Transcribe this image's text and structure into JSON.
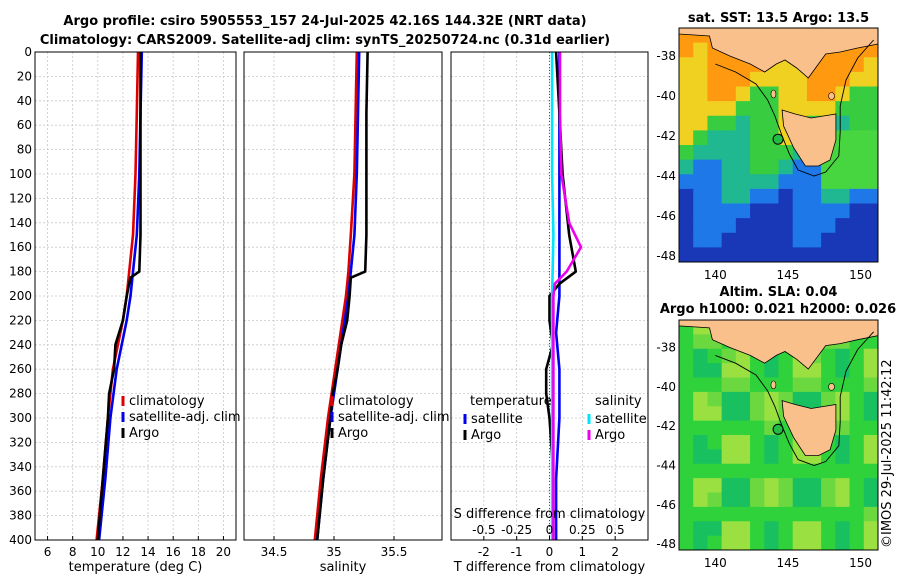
{
  "title_line1": "Argo profile: csiro 5905553_157 24-Jul-2025 42.16S 144.32E (NRT data)",
  "title_line2": "Climatology: CARS2009. Satellite-adj clim: synTS_20250724.nc (0.31d earlier)",
  "timestamp": "©IMOS 29-Jul-2025 11:42:12",
  "colors": {
    "climatology": "#dd0000",
    "satellite": "#0000ee",
    "argo": "#000000",
    "sat_salinity": "#00e5ff",
    "argo_salinity": "#ee00ee"
  },
  "chart_data": [
    {
      "id": "temperature",
      "type": "line",
      "xlabel": "temperature (deg C)",
      "ylabel": "",
      "xlim": [
        5,
        21
      ],
      "ylim": [
        0,
        400
      ],
      "xticks": [
        6,
        8,
        10,
        12,
        14,
        16,
        18,
        20
      ],
      "xtick_labels": [
        "6",
        "8",
        "10",
        "12",
        "14",
        "16",
        "18",
        "20"
      ],
      "yticks": [
        0,
        20,
        40,
        60,
        80,
        100,
        120,
        140,
        160,
        180,
        200,
        220,
        240,
        260,
        280,
        300,
        320,
        340,
        360,
        380,
        400
      ],
      "ytick_labels": [
        "0",
        "20",
        "40",
        "60",
        "80",
        "100",
        "120",
        "140",
        "160",
        "180",
        "200",
        "220",
        "240",
        "260",
        "280",
        "300",
        "320",
        "340",
        "360",
        "380",
        "400"
      ],
      "legend": {
        "entries": [
          "climatology",
          "satellite-adj. clim",
          "Argo"
        ],
        "position": "lower-right"
      },
      "series": [
        {
          "name": "climatology",
          "color": "#dd0000",
          "depth": [
            0,
            50,
            100,
            150,
            180,
            200,
            220,
            260,
            300,
            350,
            400
          ],
          "values": [
            13.2,
            13.1,
            13.0,
            12.8,
            12.5,
            12.3,
            12.0,
            11.2,
            10.8,
            10.4,
            9.9
          ]
        },
        {
          "name": "satellite-adj. clim",
          "color": "#0000ee",
          "depth": [
            0,
            50,
            100,
            150,
            180,
            200,
            220,
            260,
            300,
            350,
            400
          ],
          "values": [
            13.5,
            13.4,
            13.3,
            13.1,
            12.8,
            12.6,
            12.3,
            11.5,
            11.0,
            10.6,
            10.1
          ]
        },
        {
          "name": "Argo",
          "color": "#000000",
          "depth": [
            0,
            50,
            100,
            150,
            180,
            185,
            200,
            220,
            240,
            260,
            280,
            300,
            350,
            400
          ],
          "values": [
            13.4,
            13.4,
            13.4,
            13.4,
            13.3,
            12.6,
            12.3,
            12.0,
            11.4,
            11.3,
            10.9,
            10.8,
            10.4,
            10.0
          ]
        }
      ]
    },
    {
      "id": "salinity",
      "type": "line",
      "xlabel": "salinity",
      "ylabel": "",
      "xlim": [
        34.25,
        35.9
      ],
      "ylim": [
        0,
        400
      ],
      "xticks": [
        34.5,
        35,
        35.5
      ],
      "xtick_labels": [
        "34.5",
        "35",
        "35.5"
      ],
      "yticks": [
        0,
        20,
        40,
        60,
        80,
        100,
        120,
        140,
        160,
        180,
        200,
        220,
        240,
        260,
        280,
        300,
        320,
        340,
        360,
        380,
        400
      ],
      "legend": {
        "entries": [
          "climatology",
          "satellite-adj. clim",
          "Argo"
        ],
        "position": "lower-right"
      },
      "series": [
        {
          "name": "climatology",
          "color": "#dd0000",
          "depth": [
            0,
            50,
            100,
            150,
            180,
            200,
            220,
            260,
            300,
            350,
            400
          ],
          "values": [
            35.19,
            35.18,
            35.17,
            35.14,
            35.12,
            35.1,
            35.07,
            35.01,
            34.95,
            34.89,
            34.84
          ]
        },
        {
          "name": "satellite-adj. clim",
          "color": "#0000ee",
          "depth": [
            0,
            50,
            100,
            150,
            180,
            200,
            220,
            260,
            300,
            350,
            400
          ],
          "values": [
            35.21,
            35.2,
            35.19,
            35.17,
            35.14,
            35.12,
            35.09,
            35.03,
            34.97,
            34.91,
            34.86
          ]
        },
        {
          "name": "Argo",
          "color": "#000000",
          "depth": [
            0,
            50,
            100,
            150,
            180,
            185,
            200,
            220,
            240,
            260,
            280,
            300,
            350,
            400
          ],
          "values": [
            35.28,
            35.27,
            35.27,
            35.27,
            35.26,
            35.14,
            35.13,
            35.11,
            35.06,
            35.03,
            34.99,
            34.97,
            34.91,
            34.86
          ]
        }
      ]
    },
    {
      "id": "difference",
      "type": "line",
      "xlabel": "T difference from climatology",
      "top_axis_label": "S difference from climatology",
      "xlim": [
        -3,
        3
      ],
      "ylim": [
        0,
        400
      ],
      "xticks": [
        -2,
        -1,
        0,
        1,
        2
      ],
      "xtick_labels": [
        "-2",
        "-1",
        "0",
        "1",
        "2"
      ],
      "sticks": [
        -0.5,
        -0.25,
        0,
        0.25,
        0.5
      ],
      "stick_labels": [
        "-0.5",
        "-0.25",
        "0",
        "0.25",
        "0.5"
      ],
      "yticks": [
        0,
        20,
        40,
        60,
        80,
        100,
        120,
        140,
        160,
        180,
        200,
        220,
        240,
        260,
        280,
        300,
        320,
        340,
        360,
        380,
        400
      ],
      "legend_left": {
        "title": "temperature",
        "entries": [
          "satellite",
          "Argo"
        ]
      },
      "legend_right": {
        "title": "salinity",
        "entries": [
          "satellite",
          "Argo"
        ]
      },
      "series": [
        {
          "name": "T satellite",
          "color": "#0000ee",
          "depth": [
            0,
            50,
            100,
            150,
            200,
            230,
            260,
            300,
            350,
            400
          ],
          "values": [
            0.3,
            0.3,
            0.3,
            0.3,
            0.3,
            0.2,
            0.3,
            0.3,
            0.2,
            0.2
          ]
        },
        {
          "name": "T Argo",
          "color": "#000000",
          "depth": [
            0,
            50,
            100,
            150,
            180,
            190,
            200,
            220,
            240,
            260,
            280,
            300,
            340,
            400
          ],
          "values": [
            0.2,
            0.3,
            0.4,
            0.6,
            0.8,
            0.3,
            0.0,
            0.0,
            0.1,
            -0.1,
            -0.1,
            0.0,
            0.1,
            0.1
          ]
        },
        {
          "name": "S satellite",
          "color": "#00e5ff",
          "depth": [
            0,
            50,
            100,
            150,
            200,
            250,
            300,
            350,
            400
          ],
          "values": [
            0.02,
            0.02,
            0.02,
            0.03,
            0.02,
            0.02,
            0.02,
            0.02,
            0.02
          ]
        },
        {
          "name": "S Argo",
          "color": "#ee00ee",
          "depth": [
            0,
            50,
            100,
            140,
            160,
            180,
            190,
            200,
            250,
            300,
            400
          ],
          "values": [
            0.08,
            0.08,
            0.09,
            0.15,
            0.24,
            0.13,
            0.04,
            0.03,
            0.03,
            0.03,
            0.03
          ]
        }
      ]
    },
    {
      "id": "sst_map",
      "type": "heatmap",
      "title": "sat. SST: 13.5 Argo: 13.5",
      "xticks": [
        140,
        145,
        150
      ],
      "xtick_labels": [
        "140",
        "145",
        "150"
      ],
      "yticks": [
        -38,
        -40,
        -42,
        -44,
        -46,
        -48
      ],
      "ytick_labels": [
        "-38",
        "-40",
        "-42",
        "-44",
        "-46",
        "-48"
      ],
      "marker": {
        "lon": 144.32,
        "lat": -42.16
      }
    },
    {
      "id": "sla_map",
      "type": "heatmap",
      "title_line1": "Altim. SLA: 0.04",
      "title_line2": "Argo h1000: 0.021 h2000: 0.026",
      "xticks": [
        140,
        145,
        150
      ],
      "xtick_labels": [
        "140",
        "145",
        "150"
      ],
      "yticks": [
        -38,
        -40,
        -42,
        -44,
        -46,
        -48
      ],
      "ytick_labels": [
        "-38",
        "-40",
        "-42",
        "-44",
        "-46",
        "-48"
      ],
      "marker": {
        "lon": 144.32,
        "lat": -42.16
      }
    }
  ]
}
